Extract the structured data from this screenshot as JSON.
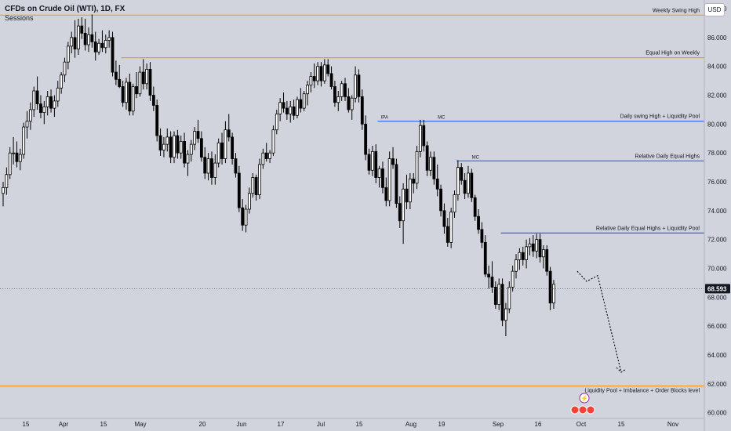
{
  "header": {
    "title": "CFDs on Crude Oil (WTI), 1D, FX",
    "indicator": "Sessions",
    "currency": "USD"
  },
  "chart_data": {
    "type": "candlestick",
    "x_ticks": [
      "15",
      "Apr",
      "15",
      "May",
      "20",
      "Jun",
      "17",
      "Jul",
      "15",
      "Aug",
      "19",
      "Sep",
      "16",
      "Oct",
      "15",
      "Nov"
    ],
    "y_ticks": [
      "88.000",
      "86.000",
      "84.000",
      "82.000",
      "80.000",
      "78.000",
      "76.000",
      "74.000",
      "72.000",
      "70.000",
      "68.000",
      "66.000",
      "64.000",
      "62.000",
      "60.000"
    ],
    "ylim": [
      59.6,
      88.6
    ],
    "current_price": "68.593",
    "levels": [
      {
        "label": "Weekly Swing High",
        "value": 87.55,
        "color": "#f39c12"
      },
      {
        "label": "Equal High on Weekly",
        "value": 84.6,
        "color": "#f39c12"
      },
      {
        "label": "Daily swing High + Liquidity Pool",
        "value": 80.2,
        "color": "#2962ff"
      },
      {
        "label": "Relative Daily Equal Highs",
        "value": 77.45,
        "color": "#2962ff"
      },
      {
        "label": "Relative Daily Equal Highs + Liquidity Pool",
        "value": 72.45,
        "color": "#2962ff"
      },
      {
        "label": "Liquidity Pool + Imbalance + Order Blocks level",
        "value": 61.85,
        "color": "#f39c12"
      }
    ],
    "annotations": [
      "IPA",
      "MC",
      "MC"
    ],
    "projection": [
      [
        69.8,
        69.1,
        69.5,
        62.8
      ],
      [
        69.8,
        69.1,
        69.5,
        62.8
      ]
    ],
    "candles": [
      [
        75.2,
        76.0,
        74.3,
        75.6
      ],
      [
        75.6,
        77.0,
        75.1,
        76.5
      ],
      [
        76.5,
        78.4,
        76.2,
        78.0
      ],
      [
        78.0,
        79.1,
        77.2,
        78.0
      ],
      [
        78.0,
        78.8,
        77.0,
        77.4
      ],
      [
        77.4,
        78.3,
        76.8,
        77.9
      ],
      [
        77.9,
        80.1,
        77.6,
        79.8
      ],
      [
        79.8,
        80.9,
        79.0,
        80.2
      ],
      [
        80.2,
        81.5,
        79.6,
        81.0
      ],
      [
        81.0,
        82.6,
        80.5,
        82.3
      ],
      [
        82.3,
        83.3,
        81.0,
        81.4
      ],
      [
        81.4,
        82.0,
        80.4,
        80.8
      ],
      [
        80.8,
        81.6,
        80.0,
        81.2
      ],
      [
        81.2,
        82.3,
        80.6,
        81.9
      ],
      [
        81.9,
        82.4,
        80.8,
        81.1
      ],
      [
        81.1,
        82.0,
        80.5,
        81.6
      ],
      [
        81.6,
        83.0,
        81.2,
        82.5
      ],
      [
        82.5,
        83.6,
        82.1,
        83.4
      ],
      [
        83.4,
        84.6,
        82.9,
        84.3
      ],
      [
        84.3,
        85.7,
        83.8,
        85.4
      ],
      [
        85.4,
        86.4,
        84.9,
        86.0
      ],
      [
        86.0,
        87.2,
        84.6,
        85.2
      ],
      [
        85.2,
        87.3,
        84.8,
        86.8
      ],
      [
        86.8,
        87.4,
        85.9,
        86.3
      ],
      [
        86.3,
        87.3,
        85.1,
        85.5
      ],
      [
        85.5,
        86.7,
        85.0,
        86.2
      ],
      [
        86.2,
        87.6,
        85.3,
        85.7
      ],
      [
        85.7,
        86.4,
        84.4,
        85.0
      ],
      [
        85.0,
        85.9,
        84.8,
        85.6
      ],
      [
        85.6,
        86.5,
        85.0,
        85.3
      ],
      [
        85.3,
        86.2,
        84.9,
        85.8
      ],
      [
        85.8,
        86.5,
        85.3,
        86.0
      ],
      [
        86.0,
        86.4,
        83.3,
        83.6
      ],
      [
        83.6,
        84.4,
        82.7,
        83.1
      ],
      [
        83.1,
        84.1,
        82.5,
        82.6
      ],
      [
        82.6,
        83.0,
        81.2,
        81.5
      ],
      [
        81.5,
        83.2,
        81.0,
        82.9
      ],
      [
        82.9,
        83.5,
        80.6,
        80.9
      ],
      [
        80.9,
        82.8,
        80.6,
        82.6
      ],
      [
        82.6,
        83.6,
        81.8,
        82.1
      ],
      [
        82.1,
        84.0,
        81.9,
        83.6
      ],
      [
        83.6,
        84.5,
        82.4,
        82.8
      ],
      [
        82.8,
        84.2,
        82.4,
        83.8
      ],
      [
        83.8,
        84.3,
        81.6,
        82.0
      ],
      [
        82.0,
        82.6,
        80.9,
        81.3
      ],
      [
        81.3,
        81.7,
        78.8,
        79.2
      ],
      [
        79.2,
        79.7,
        77.8,
        78.2
      ],
      [
        78.2,
        79.1,
        77.7,
        78.6
      ],
      [
        78.6,
        79.7,
        78.1,
        79.1
      ],
      [
        79.1,
        79.5,
        77.3,
        77.7
      ],
      [
        77.7,
        79.5,
        77.3,
        79.2
      ],
      [
        79.2,
        79.6,
        77.6,
        78.0
      ],
      [
        78.0,
        79.2,
        77.6,
        78.8
      ],
      [
        78.8,
        79.4,
        77.0,
        77.3
      ],
      [
        77.3,
        78.2,
        76.4,
        77.9
      ],
      [
        77.9,
        78.9,
        77.4,
        78.6
      ],
      [
        78.6,
        79.8,
        78.2,
        79.5
      ],
      [
        79.5,
        80.3,
        78.7,
        79.0
      ],
      [
        79.0,
        79.5,
        77.4,
        77.7
      ],
      [
        77.7,
        78.4,
        76.2,
        76.6
      ],
      [
        76.6,
        78.0,
        76.1,
        77.6
      ],
      [
        77.6,
        78.1,
        75.8,
        76.3
      ],
      [
        76.3,
        77.9,
        75.8,
        77.3
      ],
      [
        77.3,
        79.0,
        77.0,
        78.7
      ],
      [
        78.7,
        79.4,
        77.2,
        77.6
      ],
      [
        77.6,
        80.2,
        77.3,
        79.6
      ],
      [
        79.6,
        80.7,
        78.8,
        79.1
      ],
      [
        79.1,
        79.4,
        77.2,
        77.6
      ],
      [
        77.6,
        78.0,
        76.3,
        76.6
      ],
      [
        76.6,
        77.1,
        73.9,
        74.2
      ],
      [
        74.2,
        74.8,
        72.6,
        73.0
      ],
      [
        73.0,
        74.4,
        72.5,
        74.1
      ],
      [
        74.1,
        75.6,
        73.8,
        75.2
      ],
      [
        75.2,
        76.6,
        74.9,
        76.3
      ],
      [
        76.3,
        76.5,
        74.7,
        75.1
      ],
      [
        75.1,
        77.6,
        74.8,
        77.2
      ],
      [
        77.2,
        78.3,
        76.9,
        78.0
      ],
      [
        78.0,
        78.7,
        77.4,
        77.6
      ],
      [
        77.6,
        78.2,
        77.3,
        78.0
      ],
      [
        78.0,
        79.9,
        77.8,
        79.6
      ],
      [
        79.6,
        81.0,
        79.3,
        80.7
      ],
      [
        80.7,
        81.8,
        80.2,
        81.5
      ],
      [
        81.5,
        82.2,
        80.8,
        81.1
      ],
      [
        81.1,
        81.6,
        80.3,
        80.7
      ],
      [
        80.7,
        81.6,
        80.1,
        81.2
      ],
      [
        81.2,
        81.7,
        80.3,
        80.6
      ],
      [
        80.6,
        81.9,
        80.4,
        81.7
      ],
      [
        81.7,
        82.5,
        80.8,
        81.1
      ],
      [
        81.1,
        82.3,
        80.9,
        82.1
      ],
      [
        82.1,
        83.0,
        81.3,
        82.7
      ],
      [
        82.7,
        83.6,
        82.2,
        83.3
      ],
      [
        83.3,
        84.2,
        82.5,
        83.0
      ],
      [
        83.0,
        84.3,
        82.7,
        84.0
      ],
      [
        84.0,
        84.3,
        82.6,
        83.0
      ],
      [
        83.0,
        84.5,
        82.8,
        84.1
      ],
      [
        84.1,
        84.5,
        83.3,
        83.5
      ],
      [
        83.5,
        84.0,
        82.4,
        82.6
      ],
      [
        82.6,
        83.0,
        81.2,
        81.5
      ],
      [
        81.5,
        82.3,
        80.9,
        81.9
      ],
      [
        81.9,
        83.0,
        81.6,
        82.8
      ],
      [
        82.8,
        83.2,
        81.6,
        81.9
      ],
      [
        81.9,
        82.5,
        80.8,
        81.0
      ],
      [
        81.0,
        82.0,
        80.3,
        81.8
      ],
      [
        81.8,
        84.0,
        81.5,
        83.4
      ],
      [
        83.4,
        83.8,
        81.5,
        81.9
      ],
      [
        81.9,
        82.4,
        79.6,
        80.0
      ],
      [
        80.0,
        80.6,
        77.5,
        77.9
      ],
      [
        77.9,
        78.3,
        76.5,
        76.8
      ],
      [
        76.8,
        78.5,
        76.4,
        78.1
      ],
      [
        78.1,
        78.6,
        75.9,
        76.3
      ],
      [
        76.3,
        77.1,
        75.6,
        76.9
      ],
      [
        76.9,
        77.4,
        75.2,
        75.6
      ],
      [
        75.6,
        76.3,
        74.3,
        74.7
      ],
      [
        74.7,
        78.1,
        74.3,
        77.6
      ],
      [
        77.6,
        78.4,
        76.9,
        77.2
      ],
      [
        77.2,
        77.6,
        74.2,
        74.5
      ],
      [
        74.5,
        75.0,
        72.8,
        73.3
      ],
      [
        73.3,
        75.9,
        71.7,
        75.5
      ],
      [
        75.5,
        76.5,
        74.1,
        74.6
      ],
      [
        74.6,
        76.6,
        74.1,
        76.2
      ],
      [
        76.2,
        76.6,
        75.2,
        75.9
      ],
      [
        75.9,
        78.5,
        75.5,
        78.1
      ],
      [
        78.1,
        80.3,
        77.7,
        79.9
      ],
      [
        79.9,
        80.3,
        78.1,
        78.5
      ],
      [
        78.5,
        78.8,
        76.4,
        76.8
      ],
      [
        76.8,
        78.1,
        76.4,
        77.7
      ],
      [
        77.7,
        78.1,
        75.8,
        76.2
      ],
      [
        76.2,
        77.2,
        75.0,
        75.5
      ],
      [
        75.5,
        75.8,
        73.6,
        74.0
      ],
      [
        74.0,
        74.5,
        72.4,
        72.9
      ],
      [
        72.9,
        73.5,
        71.5,
        71.8
      ],
      [
        71.8,
        74.2,
        71.4,
        73.9
      ],
      [
        73.9,
        75.4,
        73.5,
        75.1
      ],
      [
        75.1,
        77.5,
        74.7,
        77.0
      ],
      [
        77.0,
        77.3,
        75.8,
        76.1
      ],
      [
        76.1,
        76.6,
        74.8,
        75.2
      ],
      [
        75.2,
        77.1,
        74.9,
        76.6
      ],
      [
        76.6,
        76.9,
        74.6,
        74.9
      ],
      [
        74.9,
        75.1,
        73.3,
        73.6
      ],
      [
        73.6,
        74.1,
        72.4,
        72.7
      ],
      [
        72.7,
        73.2,
        71.4,
        71.8
      ],
      [
        71.8,
        72.3,
        69.4,
        69.6
      ],
      [
        69.6,
        70.2,
        68.6,
        69.4
      ],
      [
        69.4,
        70.5,
        68.3,
        68.7
      ],
      [
        68.7,
        69.1,
        67.2,
        67.5
      ],
      [
        67.5,
        69.3,
        67.1,
        68.9
      ],
      [
        68.9,
        69.3,
        66.0,
        66.4
      ],
      [
        66.4,
        67.6,
        65.3,
        67.2
      ],
      [
        67.2,
        69.1,
        66.9,
        68.7
      ],
      [
        68.7,
        70.2,
        68.4,
        69.8
      ],
      [
        69.8,
        71.0,
        69.3,
        70.6
      ],
      [
        70.6,
        71.4,
        69.9,
        71.1
      ],
      [
        71.1,
        71.5,
        70.2,
        70.6
      ],
      [
        70.6,
        72.0,
        70.0,
        71.5
      ],
      [
        71.5,
        72.1,
        70.9,
        71.7
      ],
      [
        71.7,
        72.3,
        70.8,
        71.2
      ],
      [
        71.2,
        72.4,
        70.7,
        72.0
      ],
      [
        72.0,
        72.4,
        70.4,
        70.8
      ],
      [
        70.8,
        71.6,
        70.0,
        71.3
      ],
      [
        71.3,
        71.6,
        69.5,
        69.8
      ],
      [
        69.8,
        70.1,
        67.1,
        67.6
      ],
      [
        67.6,
        69.2,
        67.2,
        68.9
      ]
    ]
  }
}
